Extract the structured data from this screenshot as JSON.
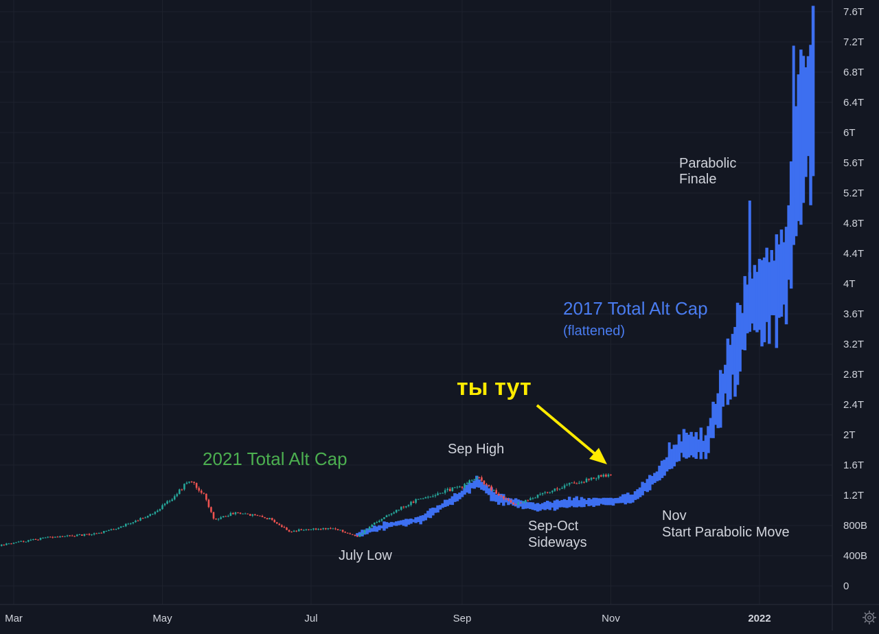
{
  "chart_data": {
    "type": "candlestick",
    "y_axis": {
      "position": "right",
      "ticks": [
        "7.6T",
        "7.2T",
        "6.8T",
        "6.4T",
        "6T",
        "5.6T",
        "5.2T",
        "4.8T",
        "4.4T",
        "4T",
        "3.6T",
        "3.2T",
        "2.8T",
        "2.4T",
        "2T",
        "1.6T",
        "1.2T",
        "800B",
        "400B",
        "0"
      ],
      "tick_values": [
        7.6,
        7.2,
        6.8,
        6.4,
        6.0,
        5.6,
        5.2,
        4.8,
        4.4,
        4.0,
        3.6,
        3.2,
        2.8,
        2.4,
        2.0,
        1.6,
        1.2,
        0.8,
        0.4,
        0
      ],
      "unit": "T",
      "range": [
        -0.15,
        7.85
      ]
    },
    "x_axis": {
      "ticks": [
        {
          "label": "Mar",
          "date": "2021-03-01",
          "bold": false
        },
        {
          "label": "May",
          "date": "2021-05-01",
          "bold": false
        },
        {
          "label": "Jul",
          "date": "2021-07-01",
          "bold": false
        },
        {
          "label": "Sep",
          "date": "2021-09-01",
          "bold": false
        },
        {
          "label": "Nov",
          "date": "2021-11-01",
          "bold": false
        },
        {
          "label": "2022",
          "date": "2022-01-01",
          "bold": true
        }
      ]
    },
    "grid": true,
    "series": [
      {
        "name": "2021 Total Alt Cap",
        "style": "candles",
        "color_up": "#26a69a",
        "color_down": "#ef5350",
        "points": [
          {
            "date": "2021-02-20",
            "v": 0.52
          },
          {
            "date": "2021-03-01",
            "v": 0.57
          },
          {
            "date": "2021-03-15",
            "v": 0.64
          },
          {
            "date": "2021-04-01",
            "v": 0.68
          },
          {
            "date": "2021-04-10",
            "v": 0.74
          },
          {
            "date": "2021-04-20",
            "v": 0.86
          },
          {
            "date": "2021-04-28",
            "v": 0.98
          },
          {
            "date": "2021-05-05",
            "v": 1.16
          },
          {
            "date": "2021-05-12",
            "v": 1.4
          },
          {
            "date": "2021-05-18",
            "v": 1.22
          },
          {
            "date": "2021-05-22",
            "v": 0.88
          },
          {
            "date": "2021-06-01",
            "v": 0.98
          },
          {
            "date": "2021-06-15",
            "v": 0.88
          },
          {
            "date": "2021-06-22",
            "v": 0.72
          },
          {
            "date": "2021-07-01",
            "v": 0.76
          },
          {
            "date": "2021-07-10",
            "v": 0.76
          },
          {
            "date": "2021-07-20",
            "v": 0.66
          },
          {
            "date": "2021-08-01",
            "v": 0.94
          },
          {
            "date": "2021-08-15",
            "v": 1.16
          },
          {
            "date": "2021-09-01",
            "v": 1.32
          },
          {
            "date": "2021-09-07",
            "v": 1.44
          },
          {
            "date": "2021-09-15",
            "v": 1.22
          },
          {
            "date": "2021-09-22",
            "v": 1.08
          },
          {
            "date": "2021-10-01",
            "v": 1.18
          },
          {
            "date": "2021-10-15",
            "v": 1.35
          },
          {
            "date": "2021-11-01",
            "v": 1.48
          }
        ]
      },
      {
        "name": "2017 Total Alt Cap",
        "style": "bars",
        "color": "#3d6ff0",
        "points": [
          {
            "date": "2021-07-20",
            "v": 0.68
          },
          {
            "date": "2021-08-01",
            "v": 0.8
          },
          {
            "date": "2021-08-15",
            "v": 0.88
          },
          {
            "date": "2021-09-01",
            "v": 1.22
          },
          {
            "date": "2021-09-07",
            "v": 1.38
          },
          {
            "date": "2021-09-15",
            "v": 1.16
          },
          {
            "date": "2021-10-01",
            "v": 1.04
          },
          {
            "date": "2021-10-15",
            "v": 1.1
          },
          {
            "date": "2021-11-01",
            "v": 1.12
          },
          {
            "date": "2021-11-10",
            "v": 1.16
          },
          {
            "date": "2021-11-20",
            "v": 1.45
          },
          {
            "date": "2021-12-01",
            "v": 1.88
          },
          {
            "date": "2021-12-10",
            "v": 1.85
          },
          {
            "date": "2021-12-20",
            "v": 2.9
          },
          {
            "date": "2021-12-28",
            "v": 3.7
          },
          {
            "date": "2022-01-05",
            "v": 3.9
          },
          {
            "date": "2022-01-12",
            "v": 4.2
          },
          {
            "date": "2022-01-18",
            "v": 6.1
          },
          {
            "date": "2022-01-23",
            "v": 6.3
          }
        ]
      }
    ],
    "annotations": {
      "legend_2021": "2021 Total Alt Cap",
      "legend_2017_title": "2017 Total Alt Cap",
      "legend_2017_sub": "(flattened)",
      "you_are_here": "ты тут",
      "sep_high": "Sep High",
      "july_low": "July Low",
      "sep_oct_1": "Sep-Oct",
      "sep_oct_2": "Sideways",
      "nov_1": "Nov",
      "nov_2": "Start Parabolic Move",
      "parabolic_1": "Parabolic",
      "parabolic_2": "Finale"
    },
    "colors": {
      "background": "#131722",
      "grid": "#1e222d",
      "axis_text": "#d1d4dc",
      "annotation": "#d1d4dc",
      "green_label": "#4caf50",
      "blue_label": "#4a7cf0",
      "highlight": "#ffeb00"
    }
  },
  "toolbar": {
    "settings_icon": "gear-icon"
  }
}
